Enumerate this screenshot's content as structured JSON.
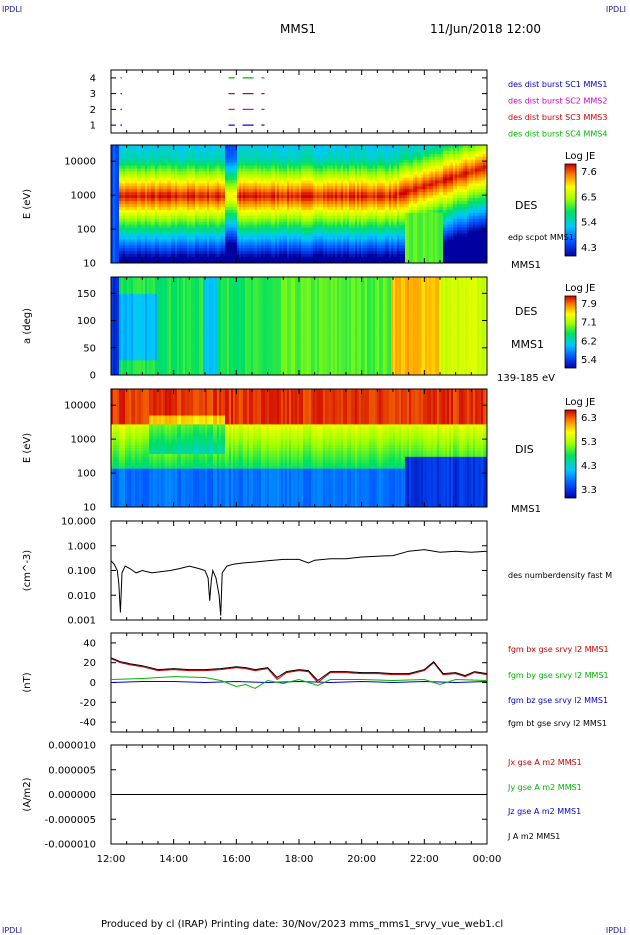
{
  "header": {
    "corner_tl": "IPDLI",
    "corner_tr": "IPDLI",
    "spacecraft": "MMS1",
    "datetime": "11/Jun/2018 12:00"
  },
  "footer": {
    "text": "Produced by cl (IRAP)   Printing date: 30/Nov/2023   mms_mms1_srvy_vue_web1.cl",
    "corner_bl": "IPDLI",
    "corner_br": "IPDLI"
  },
  "colors": {
    "blue": "#0000cc",
    "magenta": "#cc00cc",
    "red": "#cc0000",
    "green": "#00b400",
    "black": "#000000"
  },
  "chart_data": [
    {
      "id": "availability",
      "type": "scatter",
      "yticks": [
        "1",
        "2",
        "3",
        "4"
      ],
      "ylim": [
        0.5,
        4.5
      ],
      "x_hours": [
        12,
        24
      ],
      "legend": [
        {
          "label": "des dist burst SC1 MMS1",
          "color": "#0000cc"
        },
        {
          "label": "des dist burst SC2 MMS2",
          "color": "#cc00cc"
        },
        {
          "label": "des dist burst SC3 MMS3",
          "color": "#cc0000"
        },
        {
          "label": "des dist burst SC4 MMS4",
          "color": "#00b400"
        }
      ],
      "segments": [
        {
          "sc": 4,
          "t": [
            [
              12.3,
              12.35
            ],
            [
              15.75,
              15.95
            ],
            [
              16.2,
              16.55
            ],
            [
              16.8,
              16.9
            ]
          ]
        },
        {
          "sc": 3,
          "t": [
            [
              12.3,
              12.35
            ],
            [
              15.75,
              15.95
            ],
            [
              16.2,
              16.55
            ],
            [
              16.8,
              16.9
            ]
          ]
        },
        {
          "sc": 2,
          "t": [
            [
              12.3,
              12.35
            ],
            [
              15.75,
              15.95
            ],
            [
              16.2,
              16.55
            ],
            [
              16.8,
              16.9
            ]
          ]
        },
        {
          "sc": 1,
          "t": [
            [
              12.3,
              12.35
            ],
            [
              15.75,
              15.95
            ],
            [
              16.2,
              16.55
            ],
            [
              16.8,
              16.9
            ]
          ]
        }
      ]
    },
    {
      "id": "des-energy",
      "type": "heatmap",
      "ylabel": "E (eV)",
      "yticks": [
        "10",
        "100",
        "1000",
        "10000"
      ],
      "ylim": [
        10,
        30000
      ],
      "yscale": "log",
      "instrument": "DES",
      "spacecraft": "MMS1",
      "overlay_label": "edp scpot MMS1",
      "colorbar": {
        "label": "Log JE",
        "ticks": [
          "7.6",
          "6.5",
          "5.4",
          "4.3"
        ],
        "range": [
          4.3,
          7.6
        ]
      }
    },
    {
      "id": "des-pitch",
      "type": "heatmap",
      "ylabel": "a (deg)",
      "yticks": [
        "0",
        "50",
        "100",
        "150"
      ],
      "ylim": [
        0,
        180
      ],
      "instrument": "DES",
      "spacecraft": "MMS1",
      "energy_range": "139-185 eV",
      "colorbar": {
        "label": "Log JE",
        "ticks": [
          "7.9",
          "7.1",
          "6.2",
          "5.4"
        ],
        "range": [
          5.4,
          7.9
        ]
      }
    },
    {
      "id": "dis-energy",
      "type": "heatmap",
      "ylabel": "E (eV)",
      "yticks": [
        "10",
        "100",
        "1000",
        "10000"
      ],
      "ylim": [
        10,
        30000
      ],
      "yscale": "log",
      "instrument": "DIS",
      "spacecraft": "MMS1",
      "colorbar": {
        "label": "Log JE",
        "ticks": [
          "6.3",
          "5.3",
          "4.3",
          "3.3"
        ],
        "range": [
          3.3,
          6.3
        ]
      }
    },
    {
      "id": "density",
      "type": "line",
      "ylabel": "(cm^-3)",
      "yticks": [
        "0.001",
        "0.010",
        "0.100",
        "1.000",
        "10.000"
      ],
      "ylim": [
        0.001,
        10
      ],
      "yscale": "log",
      "series": [
        {
          "name": "des numberdensity fast M",
          "color": "#000000",
          "t": [
            12.0,
            12.1,
            12.2,
            12.25,
            12.3,
            12.35,
            12.45,
            12.6,
            12.8,
            13.0,
            13.3,
            13.6,
            13.9,
            14.2,
            14.5,
            14.8,
            15.0,
            15.1,
            15.15,
            15.2,
            15.25,
            15.35,
            15.45,
            15.5,
            15.55,
            15.7,
            15.9,
            16.2,
            16.6,
            17.0,
            17.5,
            18.0,
            18.3,
            18.5,
            19.0,
            19.5,
            20.0,
            20.5,
            21.0,
            21.5,
            22.0,
            22.5,
            23.0,
            23.5,
            24.0
          ],
          "v": [
            0.25,
            0.18,
            0.1,
            0.03,
            0.002,
            0.08,
            0.15,
            0.12,
            0.08,
            0.1,
            0.08,
            0.09,
            0.1,
            0.12,
            0.15,
            0.12,
            0.1,
            0.05,
            0.006,
            0.04,
            0.1,
            0.05,
            0.01,
            0.0015,
            0.08,
            0.15,
            0.18,
            0.2,
            0.22,
            0.25,
            0.28,
            0.28,
            0.2,
            0.26,
            0.3,
            0.3,
            0.35,
            0.38,
            0.4,
            0.6,
            0.7,
            0.55,
            0.6,
            0.55,
            0.6
          ]
        }
      ]
    },
    {
      "id": "bfield",
      "type": "line",
      "ylabel": "(nT)",
      "yticks": [
        "-40",
        "-20",
        "0",
        "20",
        "40"
      ],
      "ylim": [
        -50,
        50
      ],
      "series": [
        {
          "name": "fgm bx gse srvy l2 MMS1",
          "color": "#cc0000",
          "t": [
            12.0,
            12.3,
            12.6,
            13.0,
            13.5,
            14.0,
            14.5,
            15.0,
            15.5,
            16.0,
            16.3,
            16.6,
            17.0,
            17.3,
            17.6,
            18.0,
            18.3,
            18.6,
            19.0,
            19.5,
            20.0,
            20.5,
            21.0,
            21.5,
            22.0,
            22.3,
            22.6,
            23.0,
            23.3,
            23.6,
            24.0
          ],
          "v": [
            24,
            20,
            18,
            16,
            12,
            13,
            12,
            12,
            13,
            15,
            14,
            12,
            14,
            3,
            10,
            12,
            11,
            0,
            10,
            10,
            9,
            9,
            8,
            8,
            12,
            20,
            8,
            9,
            6,
            10,
            8
          ]
        },
        {
          "name": "fgm by gse srvy l2 MMS1",
          "color": "#00b400",
          "t": [
            12.0,
            13.0,
            14.0,
            15.0,
            15.5,
            16.0,
            16.3,
            16.6,
            17.0,
            17.5,
            18.0,
            18.6,
            19.0,
            20.0,
            21.0,
            22.0,
            22.5,
            23.0,
            24.0
          ],
          "v": [
            3,
            4,
            6,
            5,
            2,
            -4,
            -2,
            -6,
            2,
            -1,
            3,
            -3,
            3,
            3,
            2,
            3,
            -2,
            3,
            2
          ]
        },
        {
          "name": "fgm bz gse srvy l2 MMS1",
          "color": "#0000cc",
          "t": [
            12.0,
            13.0,
            14.0,
            15.0,
            16.0,
            17.0,
            18.0,
            19.0,
            20.0,
            21.0,
            22.0,
            23.0,
            24.0
          ],
          "v": [
            0,
            1,
            1,
            0,
            1,
            0,
            1,
            0,
            1,
            0,
            1,
            0,
            1
          ]
        },
        {
          "name": "fgm bt gse srvy l2 MMS1",
          "color": "#000000",
          "t": [
            12.0,
            12.3,
            12.6,
            13.0,
            13.5,
            14.0,
            14.5,
            15.0,
            15.5,
            16.0,
            16.3,
            16.6,
            17.0,
            17.3,
            17.6,
            18.0,
            18.3,
            18.6,
            19.0,
            19.5,
            20.0,
            20.5,
            21.0,
            21.5,
            22.0,
            22.3,
            22.6,
            23.0,
            23.3,
            23.6,
            24.0
          ],
          "v": [
            25,
            21,
            19,
            17,
            13,
            14,
            13,
            13,
            14,
            16,
            15,
            13,
            15,
            5,
            11,
            13,
            12,
            2,
            11,
            11,
            10,
            10,
            9,
            9,
            13,
            21,
            9,
            10,
            7,
            11,
            9
          ]
        }
      ]
    },
    {
      "id": "current",
      "type": "line",
      "ylabel": "(A/m2)",
      "yticks": [
        "-0.000010",
        "-0.000005",
        "0.000000",
        "0.000005",
        "0.000010"
      ],
      "ylim": [
        -1e-05,
        1e-05
      ],
      "series": [
        {
          "name": "Jx gse A m2 MMS1",
          "color": "#cc0000",
          "t": [
            12,
            24
          ],
          "v": [
            0,
            0
          ]
        },
        {
          "name": "Jy gse A m2 MMS1",
          "color": "#00b400",
          "t": [
            12,
            24
          ],
          "v": [
            0,
            0
          ]
        },
        {
          "name": "Jz gse A m2 MMS1",
          "color": "#0000cc",
          "t": [
            12,
            24
          ],
          "v": [
            0,
            0
          ]
        },
        {
          "name": "J A m2 MMS1",
          "color": "#000000",
          "t": [
            12,
            24
          ],
          "v": [
            0,
            0
          ]
        }
      ]
    }
  ],
  "xaxis": {
    "ticks": [
      "12:00",
      "14:00",
      "16:00",
      "18:00",
      "20:00",
      "22:00",
      "00:00"
    ],
    "range_hours": [
      12,
      24
    ]
  }
}
